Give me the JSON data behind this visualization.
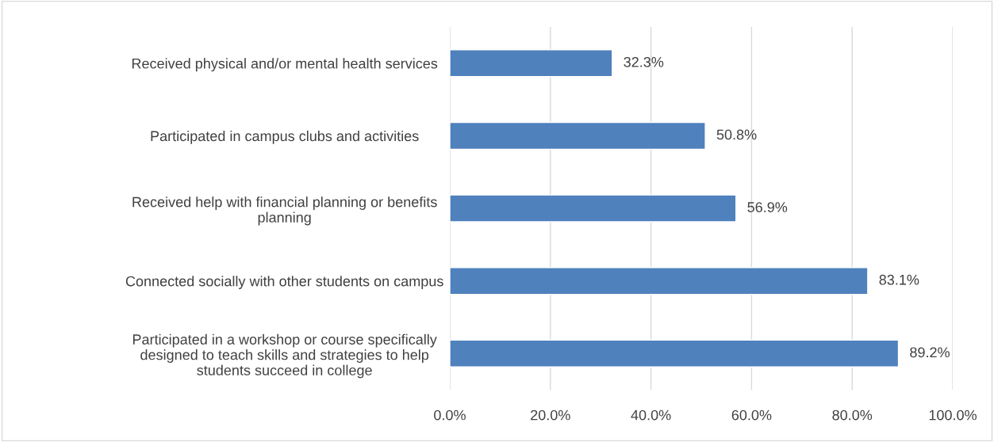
{
  "chart_data": {
    "type": "bar",
    "orientation": "horizontal",
    "categories": [
      "Received physical and/or mental health services",
      "Participated in campus clubs and activities",
      "Received help with financial planning or benefits\nplanning",
      "Connected socially with other students on campus",
      "Participated in a workshop or course specifically\ndesigned to teach skills and strategies to help\nstudents succeed in college"
    ],
    "values": [
      32.3,
      50.8,
      56.9,
      83.1,
      89.2
    ],
    "value_labels": [
      "32.3%",
      "50.8%",
      "56.9%",
      "83.1%",
      "89.2%"
    ],
    "color": "#4f81bd",
    "xlim": [
      0,
      100
    ],
    "xticks": [
      {
        "value": 0,
        "label": "0.0%"
      },
      {
        "value": 20,
        "label": "20.0%"
      },
      {
        "value": 40,
        "label": "40.0%"
      },
      {
        "value": 60,
        "label": "60.0%"
      },
      {
        "value": 80,
        "label": "80.0%"
      },
      {
        "value": 100,
        "label": "100.0%"
      }
    ],
    "grid": "x",
    "legend": false
  }
}
